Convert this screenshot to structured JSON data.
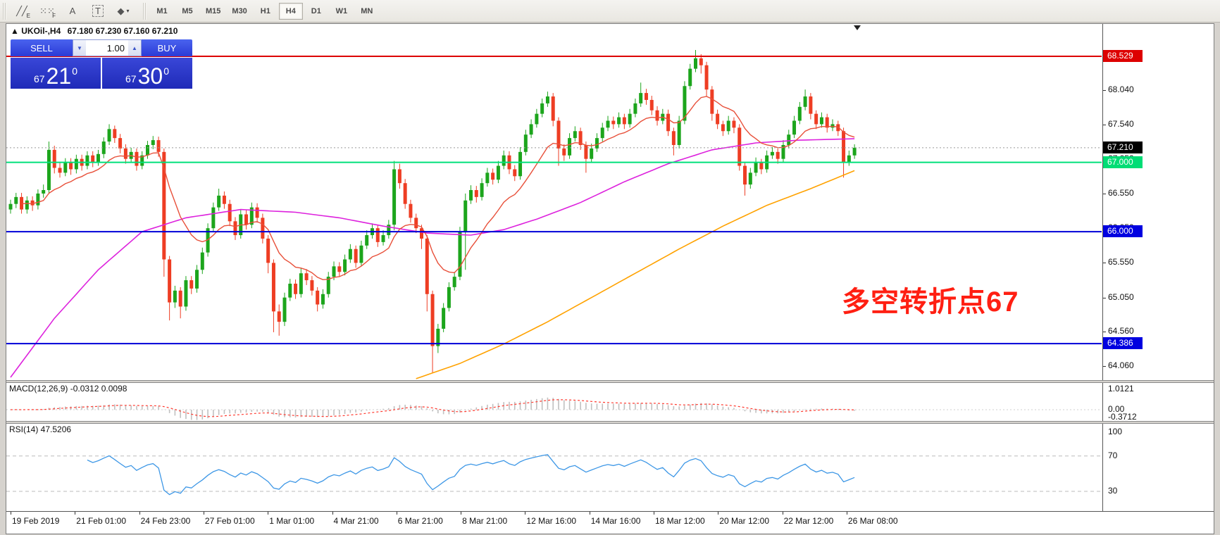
{
  "toolbar": {
    "icons": [
      {
        "name": "indicators-icon",
        "glyph": "╱╱",
        "sub": "E"
      },
      {
        "name": "grid-icon",
        "glyph": "⁙⁙",
        "sub": "F"
      },
      {
        "name": "text-label-icon",
        "glyph": "A",
        "sub": ""
      },
      {
        "name": "text-box-icon",
        "glyph": "T",
        "sub": ""
      },
      {
        "name": "arrow-objects-icon",
        "glyph": "◆",
        "sub": "▾"
      }
    ],
    "timeframes": [
      "M1",
      "M5",
      "M15",
      "M30",
      "H1",
      "H4",
      "D1",
      "W1",
      "MN"
    ],
    "active_timeframe": "H4"
  },
  "quote_bar": {
    "arrow": "▲",
    "symbol": "UKOil-,H4",
    "ohlc": "67.180 67.230 67.160 67.210"
  },
  "trade_panel": {
    "sell_label": "SELL",
    "buy_label": "BUY",
    "volume": "1.00",
    "volume_down": "▼",
    "volume_up": "▲",
    "sell_price": {
      "prefix": "67",
      "big": "21",
      "sup": "0"
    },
    "buy_price": {
      "prefix": "67",
      "big": "30",
      "sup": "0"
    }
  },
  "annotation": {
    "text": "多空转折点67",
    "color": "#ff1f12"
  },
  "colors": {
    "bull": "#1ca51c",
    "bear": "#ee3d23",
    "ma_fast": "#e8503a",
    "ma_slow": "#dd22dd",
    "ma_long": "#ffa200",
    "macd_hist": "#c0c0c0",
    "macd_signal": "#ff3b30",
    "rsi_line": "#3d97e6"
  },
  "chart_data": {
    "type": "candlestick",
    "symbol": "UKOil-",
    "timeframe": "H4",
    "price_axis_top": 68.99,
    "price_axis_bottom": 63.87,
    "ticks": [
      {
        "label": "68.040",
        "price": 68.04
      },
      {
        "label": "67.540",
        "price": 67.54
      },
      {
        "label": "67.050",
        "price": 67.05
      },
      {
        "label": "66.550",
        "price": 66.55
      },
      {
        "label": "66.050",
        "price": 66.05
      },
      {
        "label": "65.550",
        "price": 65.55
      },
      {
        "label": "65.050",
        "price": 65.05
      },
      {
        "label": "64.560",
        "price": 64.56
      },
      {
        "label": "64.060",
        "price": 64.06
      }
    ],
    "hlines": [
      {
        "label": "68.529",
        "price": 68.529,
        "color": "#dd0000",
        "width": 2,
        "style": "solid",
        "badge": "#dd0000"
      },
      {
        "label": "67.210",
        "price": 67.21,
        "color": "#999999",
        "width": 1,
        "style": "dotted",
        "badge": "#000000"
      },
      {
        "label": "67.000",
        "price": 67.0,
        "color": "#00e07a",
        "width": 2,
        "style": "solid",
        "badge": "#00dd75"
      },
      {
        "label": "66.000",
        "price": 66.0,
        "color": "#0000d8",
        "width": 2,
        "style": "solid",
        "badge": "#0000e0"
      },
      {
        "label": "64.386",
        "price": 64.386,
        "color": "#0000d8",
        "width": 2,
        "style": "solid",
        "badge": "#0000e0"
      }
    ],
    "candles": [
      [
        66.32,
        66.46,
        66.26,
        66.4
      ],
      [
        66.4,
        66.56,
        66.34,
        66.5
      ],
      [
        66.5,
        66.56,
        66.26,
        66.32
      ],
      [
        66.32,
        66.51,
        66.26,
        66.45
      ],
      [
        66.45,
        66.51,
        66.3,
        66.38
      ],
      [
        66.38,
        66.61,
        66.32,
        66.55
      ],
      [
        66.55,
        66.68,
        66.49,
        66.6
      ],
      [
        66.6,
        67.3,
        66.55,
        67.18
      ],
      [
        67.18,
        67.24,
        66.84,
        66.92
      ],
      [
        66.92,
        67.0,
        66.78,
        66.85
      ],
      [
        66.85,
        67.06,
        66.8,
        67.0
      ],
      [
        67.0,
        67.06,
        66.82,
        66.9
      ],
      [
        66.9,
        67.11,
        66.84,
        67.05
      ],
      [
        67.05,
        67.11,
        66.88,
        66.95
      ],
      [
        66.95,
        67.16,
        66.9,
        67.1
      ],
      [
        67.1,
        67.16,
        66.93,
        67.0
      ],
      [
        67.0,
        67.18,
        66.95,
        67.12
      ],
      [
        67.12,
        67.36,
        67.06,
        67.3
      ],
      [
        67.3,
        67.55,
        67.25,
        67.48
      ],
      [
        67.48,
        67.53,
        67.28,
        67.35
      ],
      [
        67.35,
        67.41,
        67.13,
        67.2
      ],
      [
        67.2,
        67.26,
        66.98,
        67.05
      ],
      [
        67.05,
        67.21,
        67.0,
        67.15
      ],
      [
        67.15,
        67.2,
        66.88,
        66.95
      ],
      [
        66.95,
        67.16,
        66.9,
        67.1
      ],
      [
        67.1,
        67.31,
        67.05,
        67.25
      ],
      [
        67.25,
        67.38,
        67.19,
        67.32
      ],
      [
        67.32,
        67.37,
        67.08,
        67.15
      ],
      [
        67.15,
        67.2,
        65.35,
        65.6
      ],
      [
        65.6,
        65.65,
        64.72,
        64.98
      ],
      [
        64.98,
        65.22,
        64.9,
        65.15
      ],
      [
        65.15,
        65.2,
        64.75,
        64.92
      ],
      [
        64.92,
        65.36,
        64.86,
        65.3
      ],
      [
        65.3,
        65.36,
        65.1,
        65.18
      ],
      [
        65.18,
        65.52,
        65.12,
        65.45
      ],
      [
        65.45,
        65.77,
        65.39,
        65.7
      ],
      [
        65.7,
        66.12,
        65.64,
        66.05
      ],
      [
        66.05,
        66.42,
        66.0,
        66.35
      ],
      [
        66.35,
        66.62,
        66.3,
        66.52
      ],
      [
        66.52,
        66.58,
        66.33,
        66.4
      ],
      [
        66.4,
        66.46,
        66.08,
        66.15
      ],
      [
        66.15,
        66.21,
        65.88,
        65.95
      ],
      [
        65.95,
        66.32,
        65.9,
        66.25
      ],
      [
        66.25,
        66.31,
        66.03,
        66.1
      ],
      [
        66.1,
        66.42,
        66.05,
        66.35
      ],
      [
        66.35,
        66.41,
        66.13,
        66.2
      ],
      [
        66.2,
        66.26,
        65.83,
        65.9
      ],
      [
        65.9,
        65.95,
        65.4,
        65.55
      ],
      [
        65.55,
        65.6,
        64.55,
        64.85
      ],
      [
        64.85,
        64.95,
        64.5,
        64.7
      ],
      [
        64.7,
        65.12,
        64.64,
        65.05
      ],
      [
        65.05,
        65.32,
        65.0,
        65.25
      ],
      [
        65.25,
        65.31,
        65.03,
        65.1
      ],
      [
        65.1,
        65.47,
        65.05,
        65.4
      ],
      [
        65.4,
        65.46,
        65.23,
        65.3
      ],
      [
        65.3,
        65.36,
        65.08,
        65.15
      ],
      [
        65.15,
        65.2,
        64.85,
        64.95
      ],
      [
        64.95,
        65.17,
        64.89,
        65.1
      ],
      [
        65.1,
        65.42,
        65.05,
        65.35
      ],
      [
        65.35,
        65.57,
        65.3,
        65.5
      ],
      [
        65.5,
        65.56,
        65.35,
        65.42
      ],
      [
        65.42,
        65.67,
        65.37,
        65.6
      ],
      [
        65.6,
        65.82,
        65.55,
        65.75
      ],
      [
        65.75,
        65.8,
        65.48,
        65.55
      ],
      [
        65.55,
        65.87,
        65.5,
        65.8
      ],
      [
        65.8,
        66.02,
        65.75,
        65.95
      ],
      [
        65.95,
        66.12,
        65.9,
        66.05
      ],
      [
        66.05,
        66.1,
        65.78,
        65.85
      ],
      [
        65.85,
        66.02,
        65.8,
        65.95
      ],
      [
        65.95,
        66.17,
        65.9,
        66.1
      ],
      [
        66.1,
        67.02,
        66.02,
        66.9
      ],
      [
        66.9,
        66.98,
        66.62,
        66.7
      ],
      [
        66.7,
        66.76,
        66.33,
        66.4
      ],
      [
        66.4,
        66.46,
        66.13,
        66.2
      ],
      [
        66.2,
        66.26,
        65.98,
        66.05
      ],
      [
        66.05,
        66.1,
        65.75,
        65.9
      ],
      [
        65.9,
        65.95,
        64.85,
        65.1
      ],
      [
        65.1,
        65.15,
        63.97,
        64.35
      ],
      [
        64.35,
        64.67,
        64.25,
        64.6
      ],
      [
        64.6,
        64.97,
        64.55,
        64.9
      ],
      [
        64.9,
        65.27,
        64.85,
        65.2
      ],
      [
        65.2,
        65.42,
        65.15,
        65.35
      ],
      [
        65.35,
        66.07,
        65.3,
        66.0
      ],
      [
        66.0,
        66.55,
        65.45,
        66.45
      ],
      [
        66.45,
        66.67,
        66.4,
        66.6
      ],
      [
        66.6,
        66.66,
        66.42,
        66.5
      ],
      [
        66.5,
        66.77,
        66.45,
        66.7
      ],
      [
        66.7,
        66.92,
        66.65,
        66.85
      ],
      [
        66.85,
        66.91,
        66.68,
        66.75
      ],
      [
        66.75,
        67.02,
        66.7,
        66.95
      ],
      [
        66.95,
        67.17,
        66.9,
        67.1
      ],
      [
        67.1,
        67.16,
        66.83,
        66.9
      ],
      [
        66.9,
        66.96,
        66.73,
        66.8
      ],
      [
        66.8,
        67.22,
        66.75,
        67.15
      ],
      [
        67.15,
        67.47,
        67.1,
        67.4
      ],
      [
        67.4,
        67.62,
        67.35,
        67.55
      ],
      [
        67.55,
        67.77,
        67.5,
        67.7
      ],
      [
        67.7,
        67.92,
        67.65,
        67.85
      ],
      [
        67.85,
        68.02,
        67.8,
        67.95
      ],
      [
        67.95,
        68.0,
        67.52,
        67.6
      ],
      [
        67.6,
        67.65,
        66.95,
        67.2
      ],
      [
        67.2,
        67.26,
        67.02,
        67.1
      ],
      [
        67.1,
        67.42,
        67.05,
        67.35
      ],
      [
        67.35,
        67.52,
        67.3,
        67.45
      ],
      [
        67.45,
        67.5,
        67.18,
        67.25
      ],
      [
        67.25,
        67.3,
        66.85,
        67.05
      ],
      [
        67.05,
        67.27,
        67.0,
        67.2
      ],
      [
        67.2,
        67.42,
        67.15,
        67.35
      ],
      [
        67.35,
        67.57,
        67.3,
        67.5
      ],
      [
        67.5,
        67.67,
        67.45,
        67.6
      ],
      [
        67.6,
        67.66,
        67.48,
        67.55
      ],
      [
        67.55,
        67.72,
        67.5,
        67.65
      ],
      [
        67.65,
        67.7,
        67.48,
        67.55
      ],
      [
        67.55,
        67.77,
        67.5,
        67.7
      ],
      [
        67.7,
        67.92,
        67.65,
        67.85
      ],
      [
        67.85,
        68.15,
        67.8,
        68.0
      ],
      [
        68.0,
        68.06,
        67.83,
        67.9
      ],
      [
        67.9,
        67.96,
        67.68,
        67.75
      ],
      [
        67.75,
        67.81,
        67.53,
        67.6
      ],
      [
        67.6,
        67.77,
        67.55,
        67.7
      ],
      [
        67.7,
        67.76,
        67.38,
        67.45
      ],
      [
        67.45,
        67.5,
        67.1,
        67.25
      ],
      [
        67.25,
        67.67,
        67.2,
        67.6
      ],
      [
        67.6,
        68.17,
        67.55,
        68.1
      ],
      [
        68.1,
        68.42,
        68.05,
        68.35
      ],
      [
        68.35,
        68.62,
        68.3,
        68.5
      ],
      [
        68.5,
        68.56,
        68.28,
        68.4
      ],
      [
        68.4,
        68.45,
        67.95,
        68.05
      ],
      [
        68.05,
        68.1,
        67.6,
        67.7
      ],
      [
        67.7,
        67.76,
        67.48,
        67.55
      ],
      [
        67.55,
        67.6,
        67.38,
        67.45
      ],
      [
        67.45,
        67.67,
        67.4,
        67.6
      ],
      [
        67.6,
        67.65,
        67.42,
        67.5
      ],
      [
        67.5,
        67.55,
        66.88,
        66.95
      ],
      [
        66.95,
        67.0,
        66.52,
        66.68
      ],
      [
        66.68,
        66.92,
        66.62,
        66.85
      ],
      [
        66.85,
        67.07,
        66.8,
        67.0
      ],
      [
        67.0,
        67.05,
        66.83,
        66.9
      ],
      [
        66.9,
        67.17,
        66.85,
        67.1
      ],
      [
        67.1,
        67.22,
        67.05,
        67.15
      ],
      [
        67.15,
        67.2,
        66.98,
        67.05
      ],
      [
        67.05,
        67.32,
        67.0,
        67.25
      ],
      [
        67.25,
        67.47,
        67.2,
        67.4
      ],
      [
        67.4,
        67.67,
        67.35,
        67.6
      ],
      [
        67.6,
        67.87,
        67.55,
        67.8
      ],
      [
        67.8,
        68.05,
        67.75,
        67.95
      ],
      [
        67.95,
        68.0,
        67.62,
        67.7
      ],
      [
        67.7,
        67.75,
        67.48,
        67.55
      ],
      [
        67.55,
        67.72,
        67.5,
        67.65
      ],
      [
        67.65,
        67.7,
        67.43,
        67.5
      ],
      [
        67.5,
        67.62,
        67.45,
        67.55
      ],
      [
        67.55,
        67.6,
        67.38,
        67.45
      ],
      [
        67.45,
        67.5,
        66.78,
        67.0
      ],
      [
        67.0,
        67.17,
        66.95,
        67.1
      ],
      [
        67.1,
        67.26,
        67.05,
        67.21
      ]
    ],
    "ma_slow_points": [
      [
        0,
        63.9
      ],
      [
        8,
        64.75
      ],
      [
        16,
        65.45
      ],
      [
        24,
        66.0
      ],
      [
        32,
        66.2
      ],
      [
        42,
        66.32
      ],
      [
        52,
        66.28
      ],
      [
        60,
        66.2
      ],
      [
        68,
        66.08
      ],
      [
        76,
        65.98
      ],
      [
        84,
        65.95
      ],
      [
        90,
        66.03
      ],
      [
        96,
        66.18
      ],
      [
        104,
        66.42
      ],
      [
        112,
        66.72
      ],
      [
        120,
        66.98
      ],
      [
        128,
        67.18
      ],
      [
        136,
        67.28
      ],
      [
        144,
        67.32
      ],
      [
        154,
        67.34
      ]
    ],
    "ma_long_points": [
      [
        74,
        63.88
      ],
      [
        82,
        64.1
      ],
      [
        90,
        64.38
      ],
      [
        98,
        64.7
      ],
      [
        106,
        65.05
      ],
      [
        114,
        65.4
      ],
      [
        122,
        65.75
      ],
      [
        130,
        66.08
      ],
      [
        138,
        66.38
      ],
      [
        146,
        66.62
      ],
      [
        154,
        66.88
      ]
    ],
    "macd": {
      "label": "MACD(12,26,9) -0.0312 0.0098",
      "main": -0.0312,
      "signal": 0.0098,
      "axis": [
        "1.0121",
        "0.00",
        "-0.3712"
      ],
      "axis_max": 1.0121,
      "axis_min": -0.3712
    },
    "rsi": {
      "label": "RSI(14) 47.5206",
      "value": 47.5206,
      "levels": [
        70,
        30
      ],
      "axis": [
        "100",
        "70",
        "30"
      ]
    },
    "time_labels": [
      "19 Feb 2019",
      "21 Feb 01:00",
      "24 Feb 23:00",
      "27 Feb 01:00",
      "1 Mar 01:00",
      "4 Mar 21:00",
      "6 Mar 21:00",
      "8 Mar 21:00",
      "12 Mar 16:00",
      "14 Mar 16:00",
      "18 Mar 12:00",
      "20 Mar 12:00",
      "22 Mar 12:00",
      "26 Mar 08:00"
    ]
  }
}
